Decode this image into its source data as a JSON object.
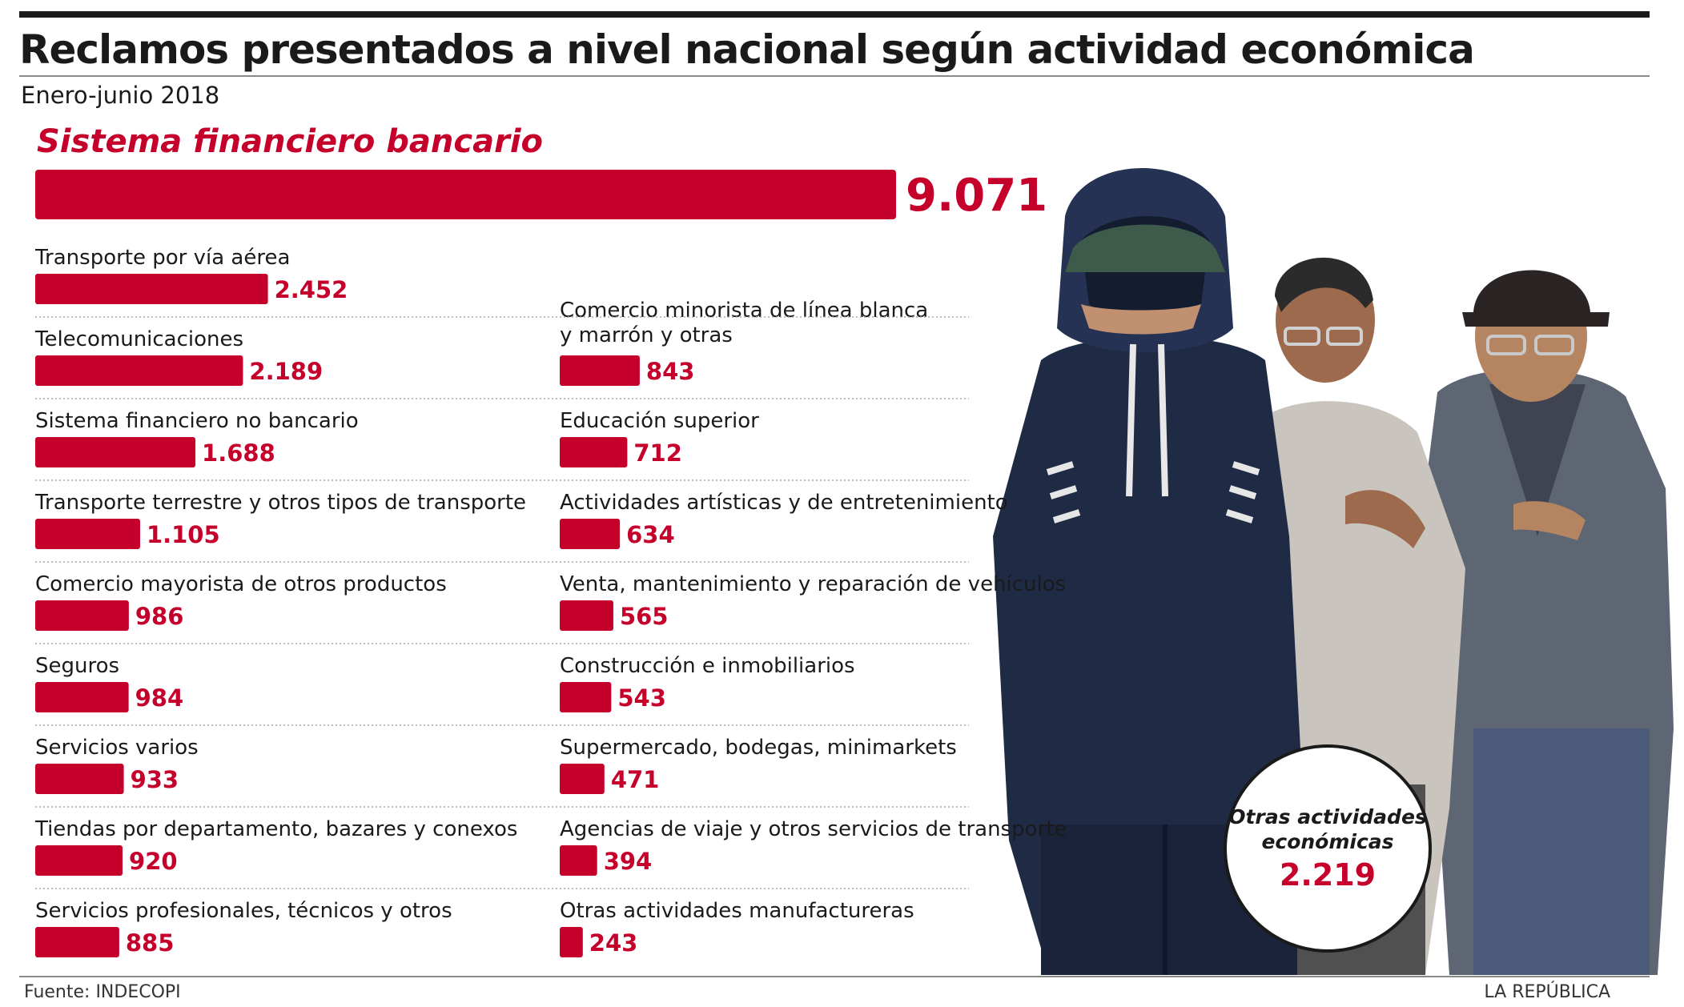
{
  "chart_data": {
    "type": "bar",
    "orientation": "horizontal",
    "title": "Reclamos presentados a nivel nacional según actividad económica",
    "subtitle": "Enero-junio 2018",
    "featured": {
      "label": "Sistema financiero bancario",
      "value": 9071,
      "value_label": "9.071"
    },
    "columns": [
      [
        {
          "label": "Transporte por vía aérea",
          "value": 2452,
          "value_label": "2.452"
        },
        {
          "label": "Telecomunicaciones",
          "value": 2189,
          "value_label": "2.189"
        },
        {
          "label": "Sistema financiero no bancario",
          "value": 1688,
          "value_label": "1.688"
        },
        {
          "label": "Transporte terrestre y otros tipos de transporte",
          "value": 1105,
          "value_label": "1.105"
        },
        {
          "label": "Comercio mayorista de otros productos",
          "value": 986,
          "value_label": "986"
        },
        {
          "label": "Seguros",
          "value": 984,
          "value_label": "984"
        },
        {
          "label": "Servicios varios",
          "value": 933,
          "value_label": "933"
        },
        {
          "label": "Tiendas por departamento, bazares y conexos",
          "value": 920,
          "value_label": "920"
        },
        {
          "label": "Servicios profesionales, técnicos y otros",
          "value": 885,
          "value_label": "885"
        }
      ],
      [
        {
          "label": "Comercio minorista de línea blanca\ny marrón y otras",
          "value": 843,
          "value_label": "843"
        },
        {
          "label": "Educación superior",
          "value": 712,
          "value_label": "712"
        },
        {
          "label": "Actividades artísticas y de entretenimiento",
          "value": 634,
          "value_label": "634"
        },
        {
          "label": "Venta, mantenimiento y reparación de vehículos",
          "value": 565,
          "value_label": "565"
        },
        {
          "label": "Construcción e inmobiliarios",
          "value": 543,
          "value_label": "543"
        },
        {
          "label": "Supermercado, bodegas, minimarkets",
          "value": 471,
          "value_label": "471"
        },
        {
          "label": "Agencias de viaje y otros servicios de transporte",
          "value": 394,
          "value_label": "394"
        },
        {
          "label": "Otras actividades manufactureras",
          "value": 243,
          "value_label": "243"
        }
      ]
    ],
    "other": {
      "label": "Otras actividades\neconómicas",
      "value": 2219,
      "value_label": "2.219"
    },
    "bar_color": "#c4002b"
  },
  "footer": {
    "source": "Fuente: INDECOPI",
    "brand": "LA REPÚBLICA"
  }
}
